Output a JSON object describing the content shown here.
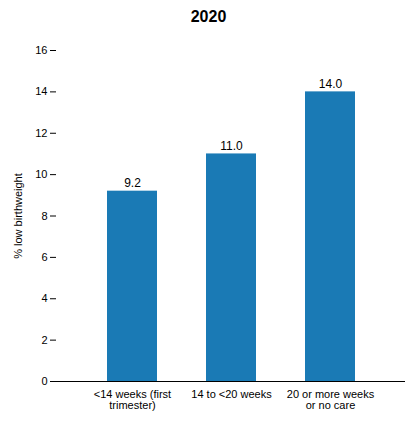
{
  "chart_data": {
    "type": "bar",
    "title": "2020",
    "categories": [
      "<14 weeks (first\ntrimester)",
      "14 to <20 weeks",
      "20 or more weeks\nor no care"
    ],
    "values": [
      9.2,
      11.0,
      14.0
    ],
    "value_labels": [
      "9.2",
      "11.0",
      "14.0"
    ],
    "data_labels": true,
    "color": "#1a7ab5",
    "ylabel": "% low birthweight",
    "ylim": [
      0,
      16
    ],
    "yticks": [
      0,
      2,
      4,
      6,
      8,
      10,
      12,
      14,
      16
    ],
    "grid": false
  }
}
